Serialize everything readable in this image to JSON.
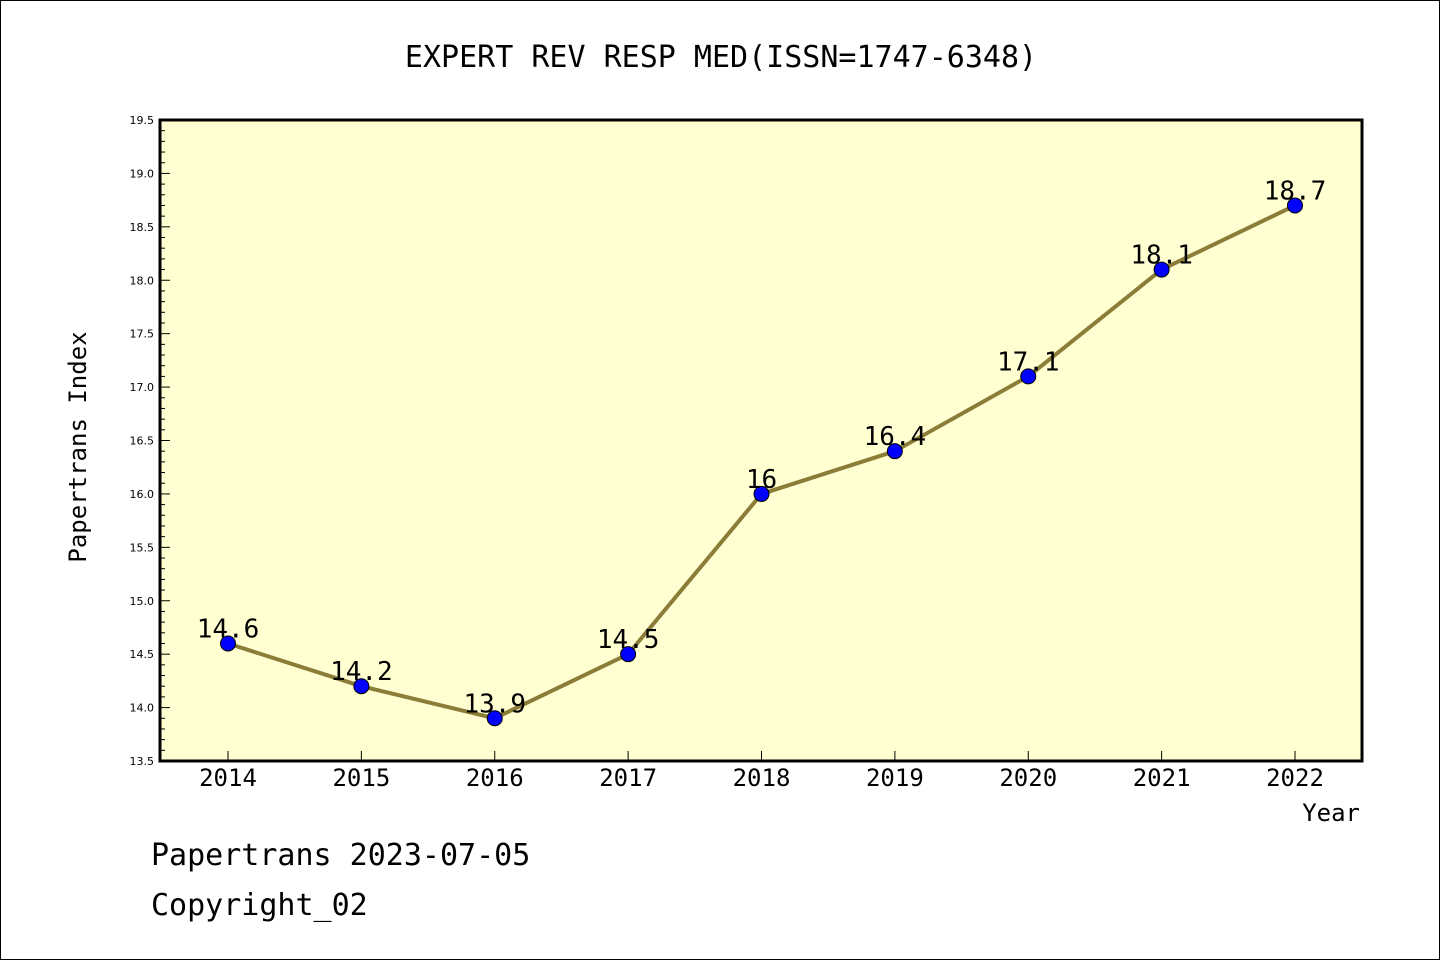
{
  "chart_data": {
    "type": "line",
    "title": "EXPERT REV RESP MED(ISSN=1747-6348)",
    "xlabel": "Year",
    "ylabel": "Papertrans Index",
    "categories": [
      "2014",
      "2015",
      "2016",
      "2017",
      "2018",
      "2019",
      "2020",
      "2021",
      "2022"
    ],
    "series": [
      {
        "values": [
          14.6,
          14.2,
          13.9,
          14.5,
          16.0,
          16.4,
          17.1,
          18.1,
          18.7
        ],
        "labels": [
          "14.6",
          "14.2",
          "13.9",
          "14.5",
          "16",
          "16.4",
          "17.1",
          "18.1",
          "18.7"
        ]
      }
    ],
    "ylim": [
      13.5,
      19.5
    ],
    "yticks": [
      "13.5",
      "14.0",
      "14.5",
      "15.0",
      "15.5",
      "16.0",
      "16.5",
      "17.0",
      "17.5",
      "18.0",
      "18.5",
      "19.0",
      "19.5"
    ],
    "grid": false,
    "colors": {
      "plot_background": "#ffffd2",
      "line": "#8b7d38",
      "marker": "#0000ff"
    }
  },
  "footer": {
    "line1": "Papertrans 2023-07-05",
    "line2": "Copyright_02"
  }
}
